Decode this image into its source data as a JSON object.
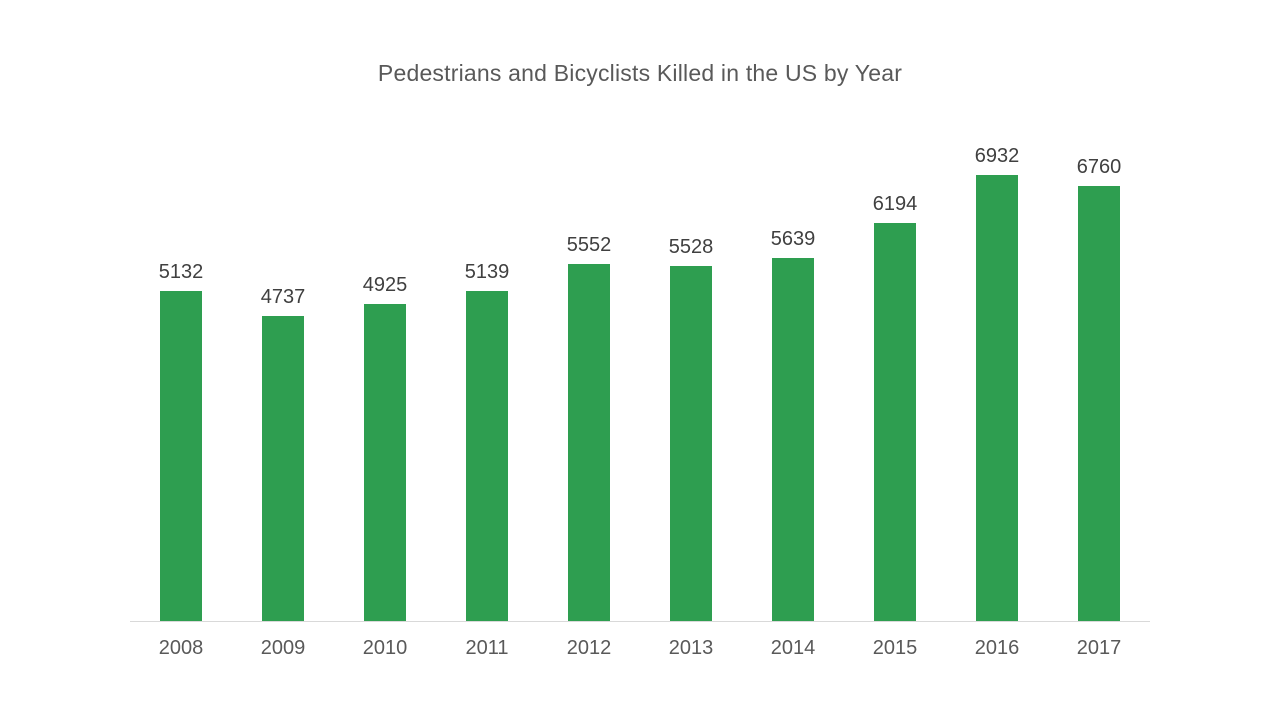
{
  "chart_data": {
    "type": "bar",
    "title": "Pedestrians and Bicyclists Killed in the US by Year",
    "categories": [
      "2008",
      "2009",
      "2010",
      "2011",
      "2012",
      "2013",
      "2014",
      "2015",
      "2016",
      "2017"
    ],
    "values": [
      5132,
      4737,
      4925,
      5139,
      5552,
      5528,
      5639,
      6194,
      6932,
      6760
    ],
    "data_labels_shown": true,
    "xlabel": "",
    "ylabel": "",
    "ylim": [
      0,
      8100
    ],
    "grid": false,
    "legend": "none",
    "colors": {
      "bar": "#2e9e50",
      "title_text": "#595959",
      "data_label_text": "#404040",
      "axis_label_text": "#595959",
      "axis_line": "#d9d9d9",
      "background": "#ffffff"
    }
  }
}
